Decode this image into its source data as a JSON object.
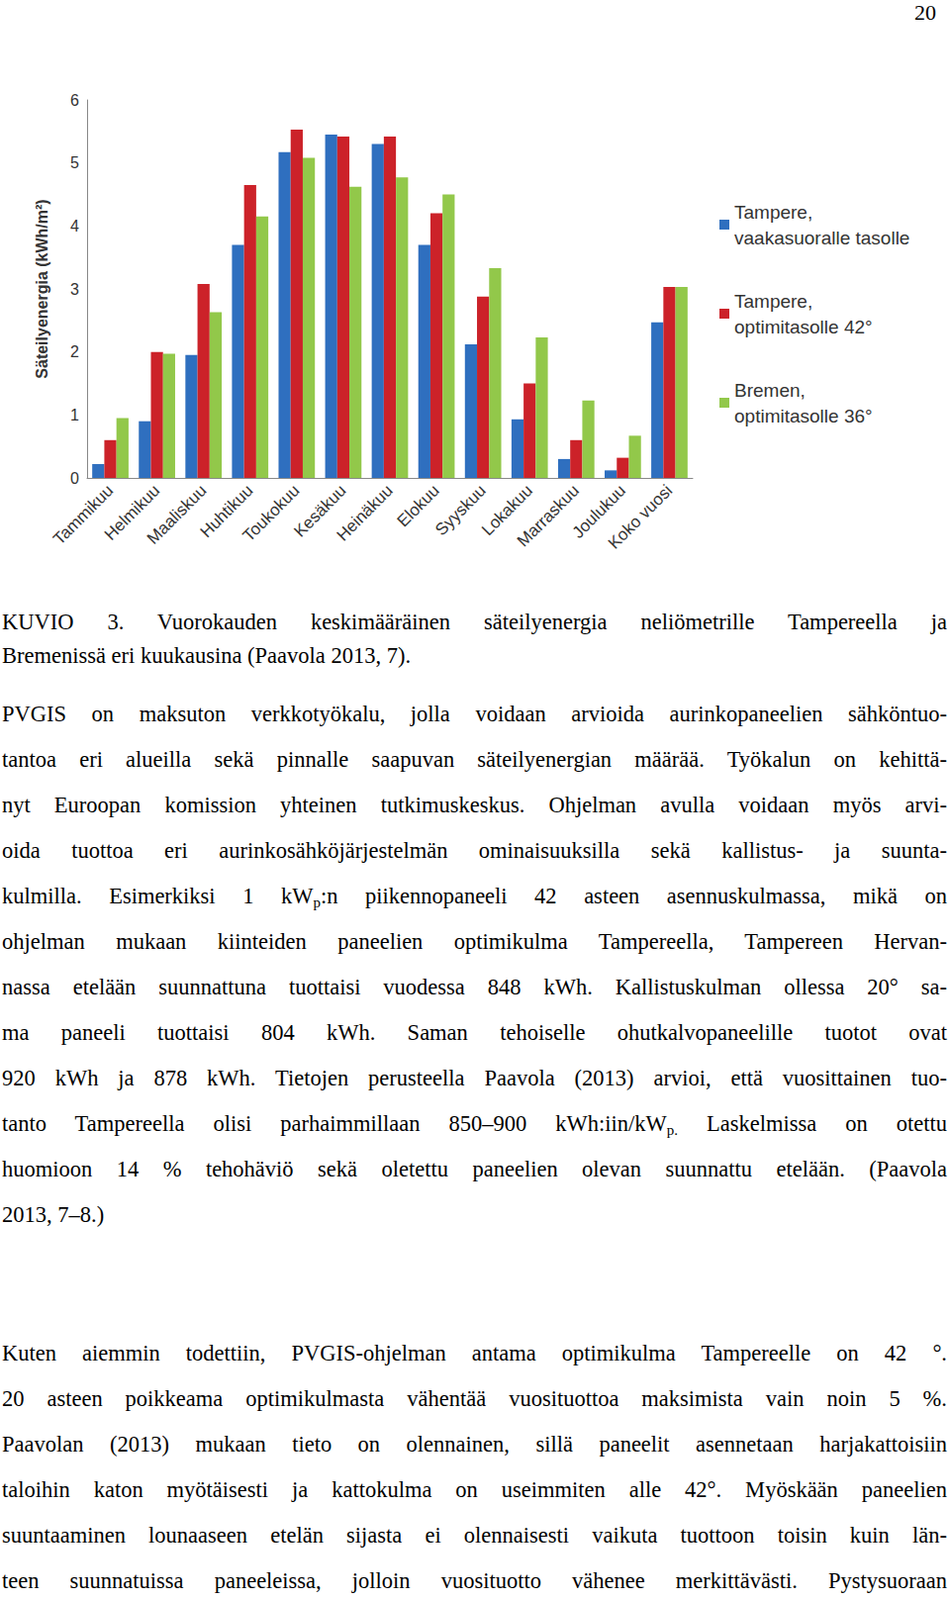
{
  "page_number": "20",
  "chart_data": {
    "type": "bar",
    "y_label": "Säteilyenergia (kWh/m²)",
    "categories": [
      "Tammikuu",
      "Helmikuu",
      "Maaliskuu",
      "Huhtikuu",
      "Toukokuu",
      "Kesäkuu",
      "Heinäkuu",
      "Elokuu",
      "Syyskuu",
      "Lokakuu",
      "Marraskuu",
      "Joulukuu",
      "Koko vuosi"
    ],
    "series": [
      {
        "name": "Tampere, vaakasuoralle tasolle",
        "color": "#2f6fbf",
        "values": [
          0.22,
          0.9,
          1.95,
          3.7,
          5.17,
          5.45,
          5.3,
          3.7,
          2.12,
          0.93,
          0.3,
          0.12,
          2.47
        ]
      },
      {
        "name": "Tampere, optimitasolle 42°",
        "color": "#cc2229",
        "values": [
          0.6,
          2.0,
          3.08,
          4.65,
          5.53,
          5.42,
          5.42,
          4.2,
          2.88,
          1.5,
          0.6,
          0.32,
          3.03
        ]
      },
      {
        "name": "Bremen, optimitasolle 36°",
        "color": "#92c84a",
        "values": [
          0.95,
          1.97,
          2.63,
          4.15,
          5.08,
          4.62,
          4.77,
          4.5,
          3.33,
          2.23,
          1.23,
          0.67,
          3.03
        ]
      }
    ],
    "ylim": [
      0,
      6
    ],
    "yticks": [
      0,
      1,
      2,
      3,
      4,
      5,
      6
    ],
    "grid": false,
    "legend": "right"
  },
  "caption": [
    "KUVIO 3. Vuorokauden keskimääräinen säteilyenergia neliömetrille Tampereella ja",
    "Bremenissä eri kuukausina (Paavola 2013, 7)."
  ],
  "paragraphs": [
    [
      [
        "PVGIS on maksuton verkkotyökalu, jolla voidaan arvioida aurinkopaneelien sähköntuo-"
      ],
      [
        "tantoa eri alueilla sekä pinnalle saapuvan säteilyenergian määrää. Työkalun on kehittä-"
      ],
      [
        "nyt Euroopan komission yhteinen tutkimuskeskus. Ohjelman avulla voidaan myös arvi-"
      ],
      [
        "oida tuottoa eri aurinkosähköjärjestelmän ominaisuuksilla sekä kallistus- ja suunta-"
      ],
      [
        "kulmilla. Esimerkiksi 1 kW",
        {
          "sub": "p"
        },
        ":n piikennopaneeli 42 asteen asennuskulmassa, mikä on"
      ],
      [
        "ohjelman mukaan kiinteiden paneelien optimikulma Tampereella, Tampereen Hervan-"
      ],
      [
        "nassa etelään suunnattuna tuottaisi vuodessa 848 kWh. Kallistuskulman ollessa 20° sa-"
      ],
      [
        "ma paneeli tuottaisi 804 kWh. Saman tehoiselle ohutkalvopaneelille tuotot ovat"
      ],
      [
        "920 kWh ja 878 kWh. Tietojen perusteella Paavola (2013) arvioi, että vuosittainen tuo-"
      ],
      [
        "tanto Tampereella olisi parhaimmillaan 850–900 kWh:iin/kW",
        {
          "sub": "p."
        },
        " Laskelmissa on otettu"
      ],
      [
        "huomioon 14 % tehohäviö sekä oletettu paneelien olevan suunnattu etelään. (Paavola"
      ],
      [
        "2013, 7–8.)"
      ]
    ],
    [
      [
        "Kuten aiemmin todettiin, PVGIS-ohjelman antama optimikulma Tampereelle on 42 °."
      ],
      [
        "20 asteen poikkeama optimikulmasta vähentää vuosituottoa maksimista vain noin 5 %."
      ],
      [
        "Paavolan (2013) mukaan tieto on olennainen, sillä paneelit asennetaan harjakattoisiin"
      ],
      [
        "taloihin katon myötäisesti ja kattokulma on useimmiten alle 42°. Myöskään paneelien"
      ],
      [
        "suuntaaminen lounaaseen etelän sijasta ei olennaisesti vaikuta tuottoon toisin kuin län-"
      ],
      [
        "teen suunnatuissa paneeleissa, jolloin vuosituotto vähenee merkittävästi. Pystysuoraan"
      ]
    ]
  ]
}
